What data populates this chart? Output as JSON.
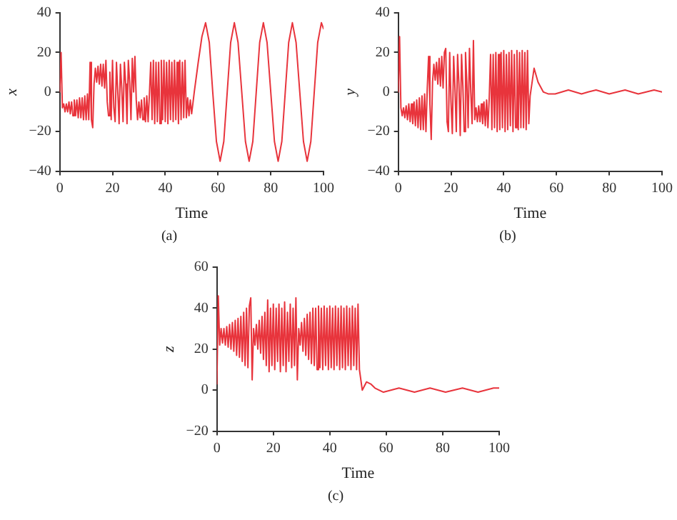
{
  "chart_data": [
    {
      "type": "line",
      "xlabel": "Time",
      "ylabel": "x",
      "annotations": [
        "(a)"
      ],
      "xlim": [
        0,
        100
      ],
      "xticks": [
        0,
        20,
        40,
        60,
        80,
        100
      ],
      "ylim": [
        -40,
        40
      ],
      "yticks": [
        -40,
        -20,
        0,
        20,
        40
      ],
      "grid": false,
      "legend": false,
      "series": [
        {
          "color": "#e8343c",
          "x": [
            0,
            0.5,
            1,
            1.5,
            2,
            2.5,
            3,
            3.5,
            4,
            4.5,
            5,
            5.5,
            6,
            6.5,
            7,
            7.5,
            8,
            8.5,
            9,
            9.5,
            10,
            10.5,
            11,
            11.5,
            12,
            12.5,
            13,
            13.5,
            14,
            14.5,
            15,
            15.5,
            16,
            16.5,
            17,
            17.5,
            18,
            18.5,
            19,
            19.5,
            20,
            20.5,
            21,
            21.5,
            22,
            22.5,
            23,
            23.5,
            24,
            24.5,
            25,
            25.5,
            26,
            26.5,
            27,
            27.5,
            28,
            28.5,
            29,
            29.5,
            30,
            30.5,
            31,
            31.5,
            32,
            32.5,
            33,
            33.5,
            34,
            34.5,
            35,
            35.5,
            36,
            36.5,
            37,
            37.5,
            38,
            38.5,
            39,
            39.5,
            40,
            40.5,
            41,
            41.5,
            42,
            42.5,
            43,
            43.5,
            44,
            44.5,
            45,
            45.5,
            46,
            46.5,
            47,
            47.5,
            48,
            48.5,
            49,
            49.5,
            50,
            51,
            52.5,
            53.9,
            55.3,
            56.7,
            58,
            59.4,
            60.8,
            62.2,
            63.5,
            64.8,
            66.2,
            67.6,
            69,
            70.4,
            71.8,
            73.2,
            74.5,
            75.8,
            77.2,
            78.6,
            80,
            81.4,
            82.8,
            84.2,
            85.5,
            86.8,
            88.2,
            89.6,
            91,
            92.4,
            93.8,
            95.2,
            96.5,
            97.8,
            99.2,
            100
          ],
          "values": [
            0,
            20,
            -8,
            -6,
            -10,
            -6,
            -10,
            -5,
            -11,
            -5,
            -12,
            -4,
            -12,
            -4,
            -13,
            -3,
            -13,
            -3,
            -14,
            -2,
            -14,
            -1,
            -14,
            15,
            -14,
            -18,
            4,
            12,
            5,
            13,
            4,
            14,
            3,
            14,
            2,
            16,
            -5,
            -12,
            10,
            -14,
            16,
            -8,
            -15,
            15,
            0,
            -16,
            14,
            2,
            -15,
            15,
            4,
            -16,
            16,
            5,
            -14,
            17,
            0,
            18,
            -4,
            -14,
            -5,
            -13,
            -4,
            -14,
            -3,
            -15,
            -2,
            -15,
            -1,
            15,
            -14,
            16,
            -16,
            15,
            -15,
            15,
            -16,
            16,
            -14,
            16,
            -15,
            15,
            -16,
            16,
            -14,
            15,
            -15,
            16,
            -14,
            15,
            -16,
            16,
            -14,
            15,
            -13,
            16,
            -13,
            -3,
            -12,
            -4,
            -11,
            0,
            15,
            28,
            35,
            25,
            0,
            -25,
            -35,
            -25,
            0,
            25,
            35,
            25,
            0,
            -25,
            -35,
            -25,
            0,
            25,
            35,
            25,
            0,
            -25,
            -35,
            -25,
            0,
            25,
            35,
            25,
            0,
            -25,
            -35,
            -25,
            0,
            25,
            35,
            32
          ]
        }
      ]
    },
    {
      "type": "line",
      "xlabel": "Time",
      "ylabel": "y",
      "annotations": [
        "(b)"
      ],
      "xlim": [
        0,
        100
      ],
      "xticks": [
        0,
        20,
        40,
        60,
        80,
        100
      ],
      "ylim": [
        -40,
        40
      ],
      "yticks": [
        -40,
        -20,
        0,
        20,
        40
      ],
      "grid": false,
      "legend": false,
      "series": [
        {
          "color": "#e8343c",
          "x": [
            0,
            0.5,
            1,
            1.5,
            2,
            2.5,
            3,
            3.5,
            4,
            4.5,
            5,
            5.5,
            6,
            6.5,
            7,
            7.5,
            8,
            8.5,
            9,
            9.5,
            10,
            10.5,
            11,
            11.5,
            12,
            12.5,
            13,
            13.5,
            14,
            14.5,
            15,
            15.5,
            16,
            16.5,
            17,
            17.5,
            18,
            18.5,
            19,
            19.5,
            20,
            20.5,
            21,
            21.5,
            22,
            22.5,
            23,
            23.5,
            24,
            24.5,
            25,
            25.5,
            26,
            26.5,
            27,
            27.5,
            28,
            28.5,
            29,
            29.5,
            30,
            30.5,
            31,
            31.5,
            32,
            32.5,
            33,
            33.5,
            34,
            34.5,
            35,
            35.5,
            36,
            36.5,
            37,
            37.5,
            38,
            38.5,
            39,
            39.5,
            40,
            40.5,
            41,
            41.5,
            42,
            42.5,
            43,
            43.5,
            44,
            44.5,
            45,
            45.5,
            46,
            46.5,
            47,
            47.5,
            48,
            48.5,
            49,
            49.5,
            50,
            51.5,
            53,
            55,
            57,
            59.5,
            62,
            64.5,
            67,
            69.5,
            72,
            75,
            77.5,
            80,
            83,
            86,
            88.5,
            91,
            94,
            97,
            100
          ],
          "values": [
            0,
            28,
            -8,
            -12,
            -8,
            -13,
            -7,
            -14,
            -6,
            -15,
            -6,
            -16,
            -5,
            -17,
            -4,
            -18,
            -3,
            -19,
            -2,
            -19,
            -1,
            -20,
            2,
            18,
            -6,
            -24,
            5,
            14,
            6,
            15,
            4,
            17,
            3,
            18,
            2,
            20,
            22,
            -15,
            -20,
            20,
            -5,
            -21,
            18,
            2,
            -20,
            19,
            4,
            -22,
            19,
            3,
            -20,
            20,
            5,
            -18,
            22,
            0,
            -16,
            26,
            -14,
            -8,
            -15,
            -7,
            -15,
            -6,
            -16,
            -5,
            -17,
            -4,
            -18,
            -3,
            19,
            -19,
            19,
            -18,
            20,
            -20,
            19,
            -19,
            20,
            -18,
            21,
            -20,
            19,
            -19,
            20,
            -17,
            21,
            -20,
            19,
            -18,
            21,
            -19,
            20,
            -18,
            21,
            -18,
            20,
            -19,
            21,
            -16,
            -2,
            12,
            5,
            0,
            -1,
            -1,
            0,
            1,
            0,
            -1,
            0,
            1,
            0,
            -1,
            0,
            1,
            0,
            -1,
            0,
            1,
            0
          ]
        }
      ]
    },
    {
      "type": "line",
      "xlabel": "Time",
      "ylabel": "z",
      "annotations": [
        "(c)"
      ],
      "xlim": [
        0,
        100
      ],
      "xticks": [
        0,
        20,
        40,
        60,
        80,
        100
      ],
      "ylim": [
        -20,
        60
      ],
      "yticks": [
        -20,
        0,
        20,
        40,
        60
      ],
      "grid": false,
      "legend": false,
      "series": [
        {
          "color": "#e8343c",
          "x": [
            0,
            0.5,
            1,
            1.5,
            2,
            2.5,
            3,
            3.5,
            4,
            4.5,
            5,
            5.5,
            6,
            6.5,
            7,
            7.5,
            8,
            8.5,
            9,
            9.5,
            10,
            10.5,
            11,
            11.5,
            12,
            12.5,
            13,
            13.5,
            14,
            14.5,
            15,
            15.5,
            16,
            16.5,
            17,
            17.5,
            18,
            18.5,
            19,
            19.5,
            20,
            20.5,
            21,
            21.5,
            22,
            22.5,
            23,
            23.5,
            24,
            24.5,
            25,
            25.5,
            26,
            26.5,
            27,
            27.5,
            28,
            28.5,
            29,
            29.5,
            30,
            30.5,
            31,
            31.5,
            32,
            32.5,
            33,
            33.5,
            34,
            34.5,
            35,
            35.5,
            36,
            36.5,
            37,
            37.5,
            38,
            38.5,
            39,
            39.5,
            40,
            40.5,
            41,
            41.5,
            42,
            42.5,
            43,
            43.5,
            44,
            44.5,
            45,
            45.5,
            46,
            46.5,
            47,
            47.5,
            48,
            48.5,
            49,
            49.5,
            50,
            50.5,
            51.5,
            53,
            54.5,
            56,
            59,
            64.5,
            70,
            75.5,
            81,
            87,
            92.5,
            98,
            100
          ],
          "values": [
            3,
            46,
            22,
            30,
            23,
            30,
            22,
            31,
            21,
            32,
            20,
            33,
            19,
            34,
            17,
            35,
            16,
            36,
            14,
            38,
            12,
            40,
            11,
            41,
            45,
            5,
            30,
            22,
            32,
            20,
            34,
            18,
            36,
            15,
            38,
            12,
            44,
            9,
            40,
            12,
            42,
            10,
            40,
            14,
            42,
            9,
            40,
            12,
            43,
            9,
            38,
            14,
            42,
            11,
            40,
            12,
            45,
            5,
            30,
            22,
            33,
            19,
            35,
            17,
            37,
            15,
            38,
            13,
            40,
            12,
            40,
            10,
            41,
            11,
            40,
            10,
            41,
            12,
            40,
            10,
            41,
            11,
            40,
            10,
            41,
            12,
            40,
            10,
            41,
            11,
            40,
            10,
            41,
            12,
            40,
            10,
            41,
            12,
            40,
            10,
            42,
            10,
            0,
            4,
            3,
            1,
            -1,
            1,
            -1,
            1,
            -1,
            1,
            -1,
            1,
            1
          ]
        }
      ]
    }
  ]
}
